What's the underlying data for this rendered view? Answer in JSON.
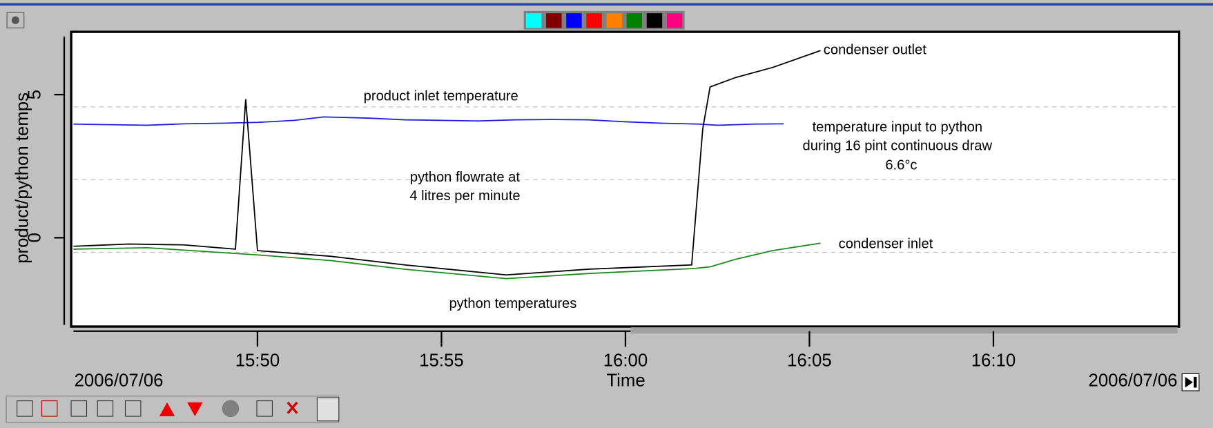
{
  "chart_data": {
    "type": "line",
    "ylabel": "product/python temps",
    "xlabel": "Time",
    "date_left": "2006/07/06",
    "date_right": "2006/07/06",
    "xlim": [
      945,
      975
    ],
    "xticks": [
      {
        "value": 950,
        "label": "15:50"
      },
      {
        "value": 955,
        "label": "15:55"
      },
      {
        "value": 960,
        "label": "16:00"
      },
      {
        "value": 965,
        "label": "16:05"
      },
      {
        "value": 970,
        "label": "16:10"
      }
    ],
    "ylim": [
      -3.05,
      7.14
    ],
    "yticks": [
      0,
      5
    ],
    "annotations": [
      "product inlet temperature",
      "python flowrate at",
      "4 litres per minute",
      "python temperatures",
      "condenser outlet",
      "temperature input to python",
      "during 16 pint continuous draw",
      "6.6°c",
      "condenser inlet"
    ],
    "series": [
      {
        "color": "#1f1fe6",
        "x": [
          945,
          946,
          947,
          948,
          949,
          950,
          951,
          951.8,
          953,
          954,
          955,
          956,
          957,
          958,
          959,
          960,
          961,
          962,
          962.5,
          963,
          963.5,
          964.3
        ],
        "values": [
          3.97,
          3.95,
          3.93,
          3.98,
          4.0,
          4.03,
          4.1,
          4.22,
          4.18,
          4.12,
          4.1,
          4.08,
          4.12,
          4.13,
          4.12,
          4.05,
          4.0,
          3.97,
          3.93,
          3.95,
          3.97,
          3.98
        ]
      },
      {
        "color": "#000000",
        "x": [
          945,
          946.5,
          948,
          949.4,
          949.68,
          950,
          952,
          954,
          956.76,
          959,
          961.8,
          962.1,
          962.3,
          963,
          964,
          965.3
        ],
        "values": [
          -0.3,
          -0.22,
          -0.25,
          -0.4,
          4.84,
          -0.45,
          -0.65,
          -0.95,
          -1.3,
          -1.1,
          -0.95,
          3.8,
          5.27,
          5.6,
          5.95,
          6.54
        ]
      },
      {
        "color": "#1a8a1a",
        "x": [
          945,
          947,
          950,
          952,
          954,
          956.76,
          959,
          961.8,
          962.3,
          963,
          964,
          965.3
        ],
        "values": [
          -0.4,
          -0.35,
          -0.6,
          -0.8,
          -1.1,
          -1.43,
          -1.25,
          -1.08,
          -1.02,
          -0.75,
          -0.45,
          -0.19
        ]
      }
    ]
  }
}
